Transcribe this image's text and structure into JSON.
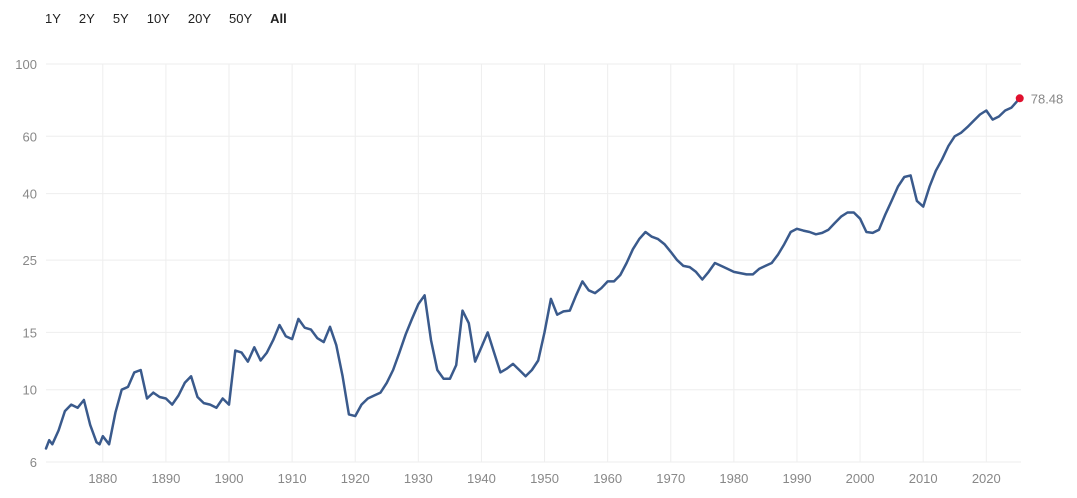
{
  "range_selector": {
    "buttons": [
      "1Y",
      "2Y",
      "5Y",
      "10Y",
      "20Y",
      "50Y",
      "All"
    ],
    "active": "All"
  },
  "colors": {
    "line": "#3a5a8c",
    "end_marker": "#e0102e",
    "grid": "#eeeeee",
    "axis_text": "#888888"
  },
  "chart_data": {
    "type": "line",
    "title": "",
    "xlabel": "",
    "ylabel": "",
    "y_scale": "log",
    "ylim": [
      6,
      100
    ],
    "xlim": [
      1871,
      2025.5
    ],
    "y_ticks": [
      6,
      10,
      15,
      25,
      40,
      60,
      100
    ],
    "x_ticks": [
      1880,
      1890,
      1900,
      1910,
      1920,
      1930,
      1940,
      1950,
      1960,
      1970,
      1980,
      1990,
      2000,
      2010,
      2020
    ],
    "grid": true,
    "end_label": "78.48",
    "series": [
      {
        "x": [
          1871,
          1871.5,
          1872,
          1873,
          1874,
          1875,
          1876,
          1877,
          1878,
          1879,
          1879.5,
          1880,
          1881,
          1882,
          1883,
          1884,
          1885,
          1886,
          1887,
          1888,
          1889,
          1890,
          1891,
          1892,
          1893,
          1894,
          1895,
          1896,
          1897,
          1898,
          1899,
          1900,
          1901,
          1902,
          1903,
          1904,
          1905,
          1906,
          1907,
          1908,
          1909,
          1910,
          1911,
          1912,
          1913,
          1914,
          1915,
          1916,
          1917,
          1918,
          1919,
          1920,
          1921,
          1922,
          1923,
          1924,
          1925,
          1926,
          1927,
          1928,
          1929,
          1930,
          1931,
          1932,
          1933,
          1934,
          1935,
          1936,
          1937,
          1938,
          1939,
          1940,
          1941,
          1942,
          1943,
          1944,
          1945,
          1946,
          1947,
          1948,
          1949,
          1950,
          1951,
          1952,
          1953,
          1954,
          1955,
          1956,
          1957,
          1958,
          1959,
          1960,
          1961,
          1962,
          1963,
          1964,
          1965,
          1966,
          1967,
          1968,
          1969,
          1970,
          1971,
          1972,
          1973,
          1974,
          1975,
          1976,
          1977,
          1978,
          1979,
          1980,
          1981,
          1982,
          1983,
          1984,
          1985,
          1986,
          1987,
          1988,
          1989,
          1990,
          1991,
          1992,
          1993,
          1994,
          1995,
          1996,
          1997,
          1998,
          1999,
          2000,
          2001,
          2002,
          2003,
          2004,
          2005,
          2006,
          2007,
          2008,
          2009,
          2010,
          2011,
          2012,
          2013,
          2014,
          2015,
          2016,
          2017,
          2018,
          2019,
          2020,
          2021,
          2022,
          2023,
          2024,
          2025.3
        ],
        "y": [
          6.6,
          7.0,
          6.8,
          7.5,
          8.6,
          9.0,
          8.8,
          9.3,
          7.8,
          6.9,
          6.8,
          7.2,
          6.8,
          8.5,
          10.0,
          10.2,
          11.3,
          11.5,
          9.4,
          9.8,
          9.5,
          9.4,
          9.0,
          9.6,
          10.5,
          11.0,
          9.5,
          9.1,
          9.0,
          8.8,
          9.4,
          9.0,
          13.2,
          13.0,
          12.2,
          13.5,
          12.3,
          13.0,
          14.2,
          15.8,
          14.6,
          14.3,
          16.5,
          15.5,
          15.3,
          14.4,
          14.0,
          15.6,
          13.7,
          11.0,
          8.4,
          8.3,
          9.0,
          9.4,
          9.6,
          9.8,
          10.5,
          11.5,
          13.0,
          14.8,
          16.5,
          18.3,
          19.5,
          14.2,
          11.5,
          10.8,
          10.8,
          11.9,
          17.5,
          16.0,
          12.2,
          13.5,
          15.0,
          13.0,
          11.3,
          11.6,
          12.0,
          11.5,
          11.0,
          11.5,
          12.3,
          15.0,
          19.0,
          17.0,
          17.4,
          17.5,
          19.5,
          21.5,
          20.2,
          19.8,
          20.5,
          21.5,
          21.5,
          22.5,
          24.5,
          27.0,
          29.0,
          30.5,
          29.5,
          29.0,
          28.0,
          26.5,
          25.0,
          24.0,
          23.8,
          23.0,
          21.8,
          23.0,
          24.5,
          24.0,
          23.5,
          23.0,
          22.8,
          22.6,
          22.6,
          23.5,
          24.0,
          24.5,
          26.0,
          28.0,
          30.5,
          31.2,
          30.8,
          30.5,
          30.0,
          30.3,
          31.0,
          32.5,
          34.0,
          35.0,
          35.0,
          33.5,
          30.5,
          30.3,
          31.0,
          34.5,
          38.0,
          42.0,
          45.0,
          45.5,
          38.0,
          36.5,
          42.0,
          47.0,
          51.0,
          56.0,
          60.0,
          61.5,
          64.0,
          67.0,
          70.0,
          72.0,
          67.5,
          69.0,
          72.0,
          73.5,
          78.48
        ]
      }
    ]
  }
}
